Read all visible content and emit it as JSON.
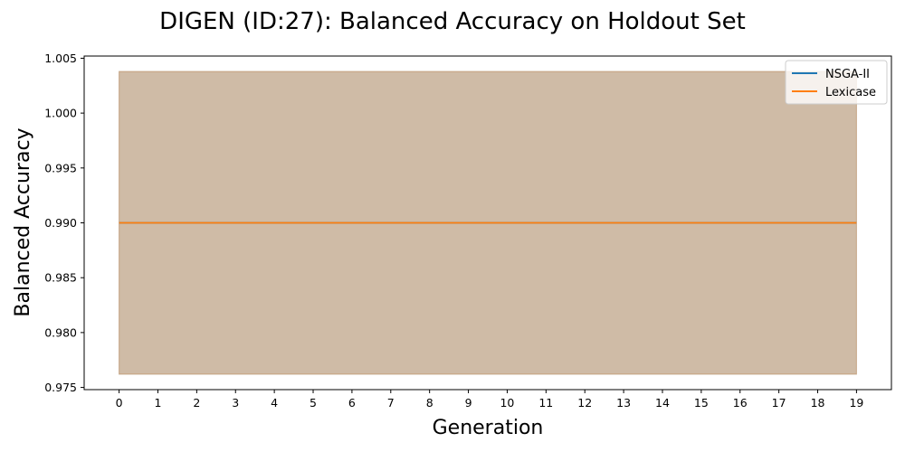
{
  "chart_data": {
    "type": "line",
    "title": "DIGEN (ID:27): Balanced Accuracy on Holdout Set",
    "xlabel": "Generation",
    "ylabel": "Balanced Accuracy",
    "x": [
      0,
      1,
      2,
      3,
      4,
      5,
      6,
      7,
      8,
      9,
      10,
      11,
      12,
      13,
      14,
      15,
      16,
      17,
      18,
      19
    ],
    "x_tick_labels": [
      "0",
      "1",
      "2",
      "3",
      "4",
      "5",
      "6",
      "7",
      "8",
      "9",
      "10",
      "11",
      "12",
      "13",
      "14",
      "15",
      "16",
      "17",
      "18",
      "19"
    ],
    "y_ticks": [
      0.975,
      0.98,
      0.985,
      0.99,
      0.995,
      1.0,
      1.005
    ],
    "y_tick_labels": [
      "0.975",
      "0.980",
      "0.985",
      "0.990",
      "0.995",
      "1.000",
      "1.005"
    ],
    "xlim": [
      -0.9,
      19.9
    ],
    "ylim": [
      0.9748,
      1.0052
    ],
    "legend_position": "top-right",
    "grid": false,
    "series": [
      {
        "name": "NSGA-II",
        "color": "#1f77b4",
        "values": [
          0.99,
          0.99,
          0.99,
          0.99,
          0.99,
          0.99,
          0.99,
          0.99,
          0.99,
          0.99,
          0.99,
          0.99,
          0.99,
          0.99,
          0.99,
          0.99,
          0.99,
          0.99,
          0.99,
          0.99
        ],
        "band_lower": [
          0.9762,
          0.9762,
          0.9762,
          0.9762,
          0.9762,
          0.9762,
          0.9762,
          0.9762,
          0.9762,
          0.9762,
          0.9762,
          0.9762,
          0.9762,
          0.9762,
          0.9762,
          0.9762,
          0.9762,
          0.9762,
          0.9762,
          0.9762
        ],
        "band_upper": [
          1.0038,
          1.0038,
          1.0038,
          1.0038,
          1.0038,
          1.0038,
          1.0038,
          1.0038,
          1.0038,
          1.0038,
          1.0038,
          1.0038,
          1.0038,
          1.0038,
          1.0038,
          1.0038,
          1.0038,
          1.0038,
          1.0038,
          1.0038
        ]
      },
      {
        "name": "Lexicase",
        "color": "#ff7f0e",
        "values": [
          0.99,
          0.99,
          0.99,
          0.99,
          0.99,
          0.99,
          0.99,
          0.99,
          0.99,
          0.99,
          0.99,
          0.99,
          0.99,
          0.99,
          0.99,
          0.99,
          0.99,
          0.99,
          0.99,
          0.99
        ],
        "band_lower": [
          0.9762,
          0.9762,
          0.9762,
          0.9762,
          0.9762,
          0.9762,
          0.9762,
          0.9762,
          0.9762,
          0.9762,
          0.9762,
          0.9762,
          0.9762,
          0.9762,
          0.9762,
          0.9762,
          0.9762,
          0.9762,
          0.9762,
          0.9762
        ],
        "band_upper": [
          1.0038,
          1.0038,
          1.0038,
          1.0038,
          1.0038,
          1.0038,
          1.0038,
          1.0038,
          1.0038,
          1.0038,
          1.0038,
          1.0038,
          1.0038,
          1.0038,
          1.0038,
          1.0038,
          1.0038,
          1.0038,
          1.0038,
          1.0038
        ]
      }
    ]
  }
}
